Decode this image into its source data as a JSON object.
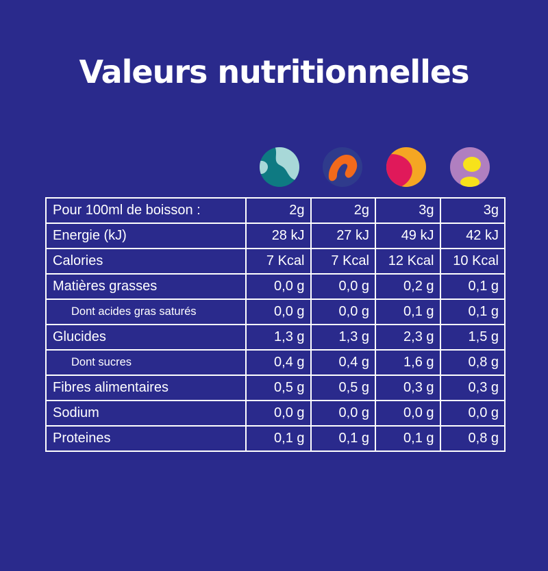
{
  "title": "Valeurs nutritionnelles",
  "flavors": [
    {
      "icon": "teal-flavor-icon",
      "colors": [
        "#0e7a82",
        "#a8d8d8"
      ]
    },
    {
      "icon": "orange-flavor-icon",
      "colors": [
        "#2f3b8c",
        "#f26a1b"
      ]
    },
    {
      "icon": "raspberry-flavor-icon",
      "colors": [
        "#f5a623",
        "#e0195a"
      ]
    },
    {
      "icon": "lemon-flavor-icon",
      "colors": [
        "#b07fc0",
        "#f7e21b"
      ]
    }
  ],
  "table": {
    "rows": [
      {
        "label": "Pour 100ml de boisson :",
        "sub": false,
        "values": [
          "2g",
          "2g",
          "3g",
          "3g"
        ]
      },
      {
        "label": "Energie (kJ)",
        "sub": false,
        "values": [
          "28 kJ",
          "27 kJ",
          "49 kJ",
          "42 kJ"
        ]
      },
      {
        "label": "Calories",
        "sub": false,
        "values": [
          "7 Kcal",
          "7 Kcal",
          "12 Kcal",
          "10 Kcal"
        ]
      },
      {
        "label": "Matières grasses",
        "sub": false,
        "values": [
          "0,0 g",
          "0,0 g",
          "0,2 g",
          "0,1 g"
        ]
      },
      {
        "label": "Dont acides gras saturés",
        "sub": true,
        "values": [
          "0,0 g",
          "0,0 g",
          "0,1 g",
          "0,1 g"
        ]
      },
      {
        "label": "Glucides",
        "sub": false,
        "values": [
          "1,3 g",
          "1,3 g",
          "2,3 g",
          "1,5 g"
        ]
      },
      {
        "label": "Dont sucres",
        "sub": true,
        "values": [
          "0,4 g",
          "0,4 g",
          "1,6 g",
          "0,8 g"
        ]
      },
      {
        "label": "Fibres alimentaires",
        "sub": false,
        "values": [
          "0,5 g",
          "0,5 g",
          "0,3 g",
          "0,3 g"
        ]
      },
      {
        "label": "Sodium",
        "sub": false,
        "values": [
          "0,0 g",
          "0,0 g",
          "0,0 g",
          "0,0 g"
        ]
      },
      {
        "label": "Proteines",
        "sub": false,
        "values": [
          "0,1 g",
          "0,1 g",
          "0,1 g",
          "0,8 g"
        ]
      }
    ]
  },
  "colors": {
    "background": "#2a2a8c",
    "text": "#ffffff",
    "border": "#ffffff"
  }
}
